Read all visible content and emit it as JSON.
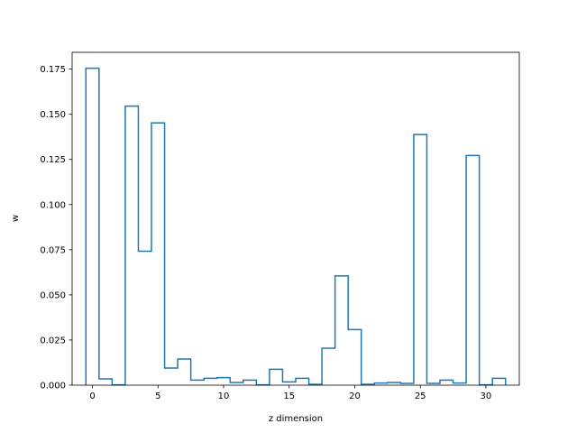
{
  "chart_data": {
    "type": "step",
    "title": "",
    "xlabel": "z dimension",
    "ylabel": "w",
    "x": [
      0,
      1,
      2,
      3,
      4,
      5,
      6,
      7,
      8,
      9,
      10,
      11,
      12,
      13,
      14,
      15,
      16,
      17,
      18,
      19,
      20,
      21,
      22,
      23,
      24,
      25,
      26,
      27,
      28,
      29,
      30,
      31
    ],
    "values": [
      0.1755,
      0.0035,
      0.0002,
      0.1545,
      0.0742,
      0.1452,
      0.0095,
      0.0145,
      0.0028,
      0.0038,
      0.0042,
      0.0015,
      0.0028,
      0.0002,
      0.0088,
      0.0018,
      0.0038,
      0.0005,
      0.0205,
      0.0605,
      0.0308,
      0.0005,
      0.0012,
      0.0015,
      0.001,
      0.1388,
      0.001,
      0.0028,
      0.0012,
      0.1272,
      0.0002,
      0.0038
    ],
    "xlim": [
      -1.55,
      32.55
    ],
    "ylim": [
      0,
      0.1843
    ],
    "xticks": [
      0,
      5,
      10,
      15,
      20,
      25,
      30
    ],
    "yticks": [
      0.0,
      0.025,
      0.05,
      0.075,
      0.1,
      0.125,
      0.15,
      0.175
    ],
    "ytick_labels": [
      "0.000",
      "0.025",
      "0.050",
      "0.075",
      "0.100",
      "0.125",
      "0.150",
      "0.175"
    ],
    "line_color": "#1f77b4",
    "grid": false
  }
}
